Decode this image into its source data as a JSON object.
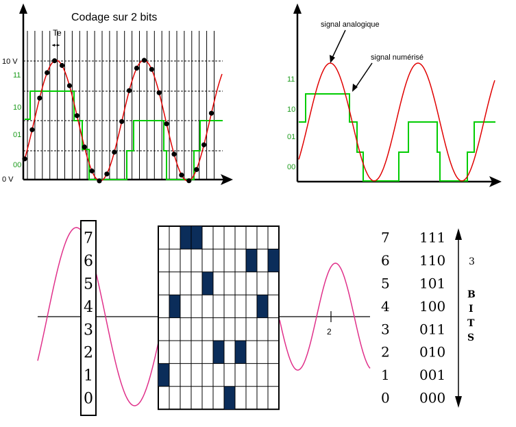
{
  "panel1": {
    "title": "Codage sur 2 bits",
    "te_label": "Te",
    "y_labels": {
      "v10": "10 V",
      "c11": "11",
      "c10": "10",
      "c01": "01",
      "c00": "00",
      "v0": "0 V"
    }
  },
  "panel2": {
    "annotation_analog": "signal analogique",
    "annotation_digital": "signal numérisé",
    "y_labels": [
      "11",
      "10",
      "01",
      "00"
    ]
  },
  "panel3": {
    "levels": [
      "7",
      "6",
      "5",
      "4",
      "3",
      "2",
      "1",
      "0"
    ],
    "codes": [
      "111",
      "110",
      "101",
      "100",
      "011",
      "010",
      "001",
      "000"
    ],
    "axis_tick": "2",
    "bits_number": "3",
    "bits_letters": [
      "B",
      "I",
      "T",
      "S"
    ],
    "grid_filled_levels": [
      1,
      4,
      7,
      7,
      5,
      2,
      0,
      2,
      6,
      4,
      6
    ],
    "colors": {
      "filled": "#0b2d5a",
      "sine": "#e0308a"
    }
  },
  "colors": {
    "analog": "#e00000",
    "digital": "#00cc00",
    "axis": "#000000"
  }
}
